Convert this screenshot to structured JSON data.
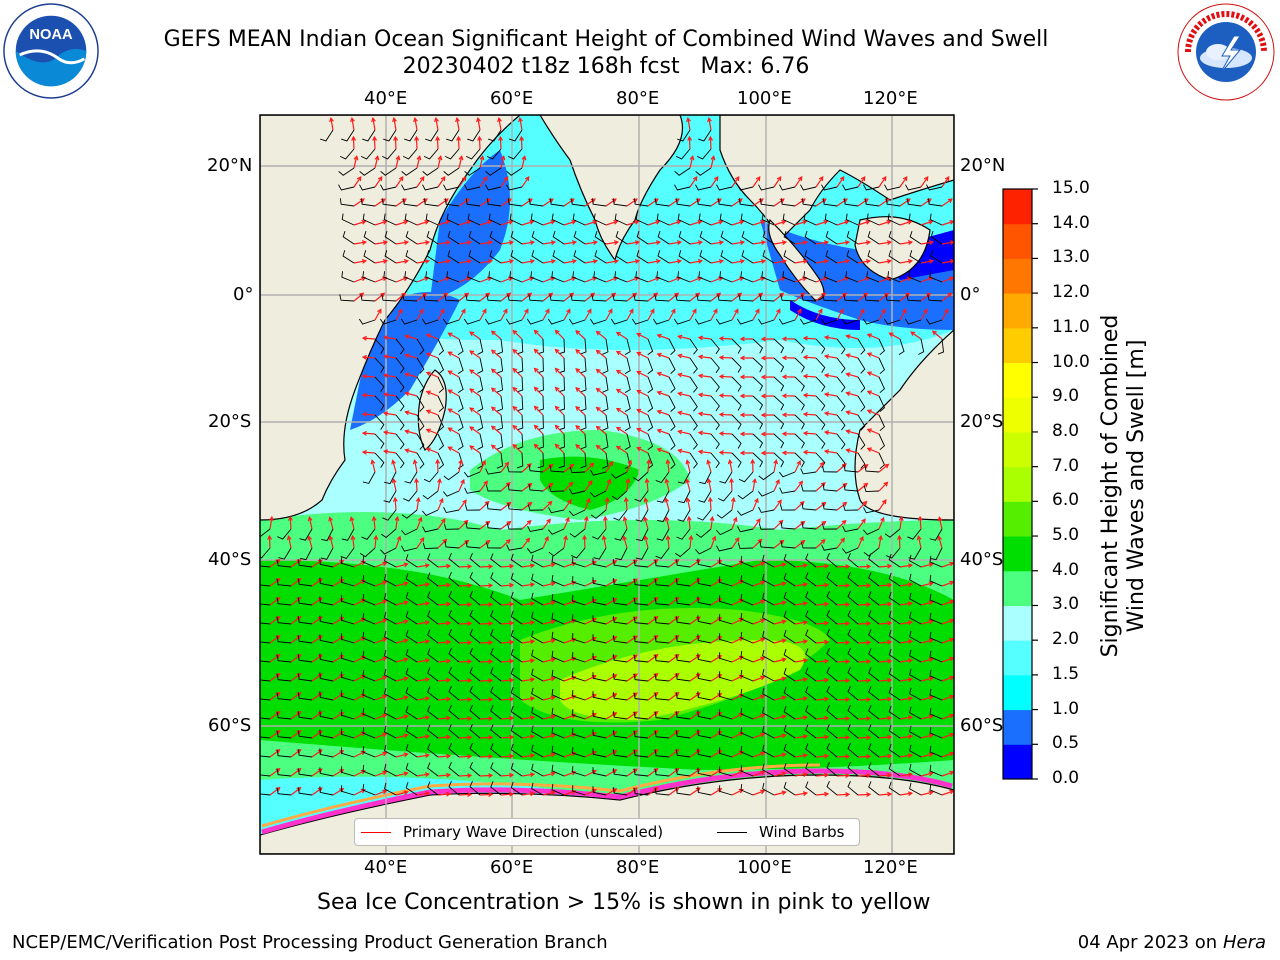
{
  "title": {
    "line1": "GEFS MEAN Indian Ocean Significant Height of Combined Wind Waves and Swell",
    "line2": "20230402 t18z 168h fcst   Max: 6.76"
  },
  "map": {
    "lon_ticks": [
      "40°E",
      "60°E",
      "80°E",
      "100°E",
      "120°E"
    ],
    "lat_ticks": [
      "20°N",
      "0°",
      "20°S",
      "40°S",
      "60°S"
    ],
    "colors": {
      "land": "#efedde",
      "coast": "#000000",
      "grid": "#b0b0b0",
      "wave_arrow": "#ff0000",
      "wind_barb": "#000000",
      "sea_ice": [
        "#ff33cc",
        "#ffaa44",
        "#ffd34d"
      ]
    }
  },
  "colorbar": {
    "label_line1": "Significant Height of Combined",
    "label_line2": "Wind Waves and Swell [m]",
    "ticks": [
      "0.0",
      "0.5",
      "1.0",
      "1.5",
      "2.0",
      "3.0",
      "4.0",
      "5.0",
      "6.0",
      "7.0",
      "8.0",
      "9.0",
      "10.0",
      "11.0",
      "12.0",
      "13.0",
      "14.0",
      "15.0"
    ],
    "colors": [
      "#0000ff",
      "#1a6fff",
      "#00ffff",
      "#55ffff",
      "#aaffff",
      "#4dff80",
      "#00dd00",
      "#55ee00",
      "#aaff00",
      "#ccff00",
      "#eeff00",
      "#ffff00",
      "#ffcc00",
      "#ffaa00",
      "#ff7700",
      "#ff5500",
      "#ff2200"
    ]
  },
  "legend": {
    "wave_label": "Primary Wave Direction (unscaled)",
    "wind_label": "Wind Barbs"
  },
  "footnote": "Sea Ice Concentration > 15% is shown in pink to yellow",
  "footer_left": "NCEP/EMC/Verification Post Processing Product Generation Branch",
  "footer_right_date": "04 Apr 2023 on ",
  "footer_right_host": "Hera",
  "logos": {
    "left": "noaa-logo",
    "right": "nws-logo"
  }
}
